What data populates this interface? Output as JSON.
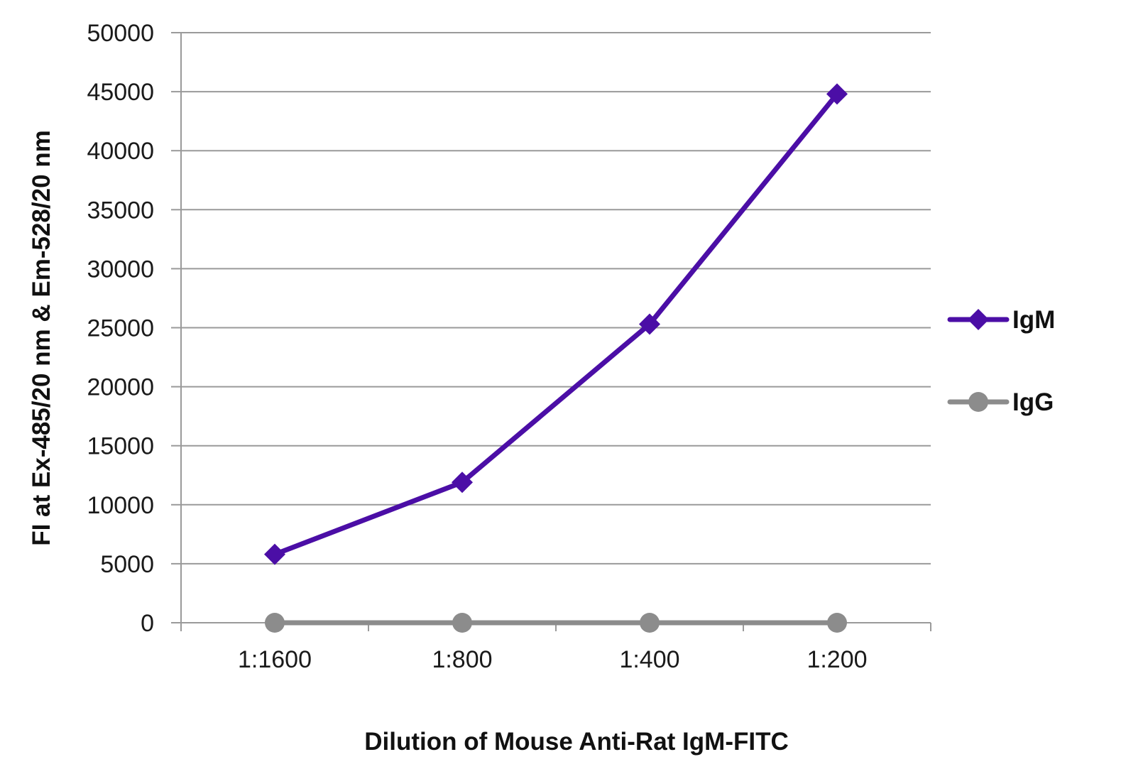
{
  "chart_data": {
    "type": "line",
    "title": "",
    "xlabel": "Dilution of Mouse Anti-Rat IgM-FITC",
    "ylabel": "FI at Ex-485/20 nm & Em-528/20 nm",
    "categories": [
      "1:1600",
      "1:800",
      "1:400",
      "1:200"
    ],
    "ylim": [
      0,
      50000
    ],
    "yticks": [
      "0",
      "5000",
      "10000",
      "15000",
      "20000",
      "25000",
      "30000",
      "35000",
      "40000",
      "45000",
      "50000"
    ],
    "grid": true,
    "legend_position": "right",
    "series": [
      {
        "name": "IgM",
        "marker": "diamond",
        "color": "#4B0EA6",
        "values": [
          5800,
          11900,
          25300,
          44800
        ]
      },
      {
        "name": "IgG",
        "marker": "circle",
        "color": "#8C8C8C",
        "values": [
          0,
          0,
          0,
          0
        ]
      }
    ]
  }
}
